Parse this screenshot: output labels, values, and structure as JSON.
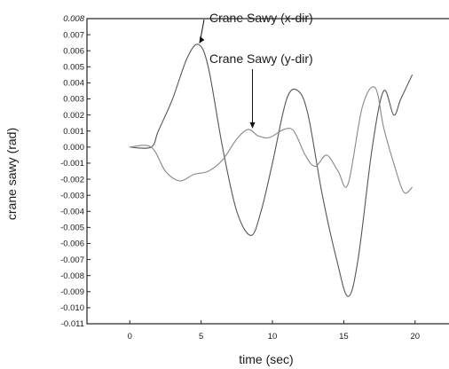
{
  "chart_data": {
    "type": "line",
    "title": "",
    "xlabel": "time (sec)",
    "ylabel": "crane sawy (rad)",
    "xlim": [
      -3,
      22.5
    ],
    "ylim": [
      -0.011,
      0.008
    ],
    "x_ticks": [
      0,
      5,
      10,
      15,
      20
    ],
    "x_tick_labels": [
      "0",
      "5",
      "10",
      "15",
      "20"
    ],
    "y_ticks": [
      0.008,
      0.007,
      0.006,
      0.005,
      0.004,
      0.003,
      0.002,
      0.001,
      0.0,
      -0.001,
      -0.002,
      -0.003,
      -0.004,
      -0.005,
      -0.006,
      -0.007,
      -0.008,
      -0.009,
      -0.01,
      -0.011
    ],
    "y_tick_labels": [
      "0.008",
      "0.007",
      "0.006",
      "0.005",
      "0.004",
      "0.003",
      "0.002",
      "0.001",
      "0.000",
      "-0.001",
      "-0.002",
      "-0.003",
      "-0.004",
      "-0.005",
      "-0.006",
      "-0.007",
      "-0.008",
      "-0.009",
      "-0.010",
      "-0.011"
    ],
    "grid": false,
    "legend": "none",
    "series": [
      {
        "x": [
          0,
          1.5,
          2,
          3,
          4,
          4.8,
          5.5,
          6.5,
          7.5,
          8.5,
          9.2,
          10,
          11,
          11.8,
          12.5,
          13.5,
          14.5,
          15.3,
          16,
          17,
          17.8,
          18.5,
          19,
          19.8
        ],
        "y": [
          0.0,
          0.0,
          0.001,
          0.003,
          0.0055,
          0.0064,
          0.005,
          0.0,
          -0.004,
          -0.0055,
          -0.004,
          -0.001,
          0.003,
          0.0035,
          0.002,
          -0.003,
          -0.007,
          -0.0093,
          -0.007,
          0.0,
          0.0035,
          0.002,
          0.003,
          0.0045
        ],
        "color": "#555555"
      },
      {
        "x": [
          0,
          1.5,
          2.5,
          3.5,
          4.5,
          5.5,
          6.5,
          7.5,
          8.3,
          9,
          9.8,
          10.8,
          11.5,
          12.3,
          13,
          13.8,
          14.6,
          15.3,
          16.3,
          17.2,
          17.8,
          18.5,
          19.2,
          19.8
        ],
        "y": [
          0.0,
          0.0,
          -0.0015,
          -0.0021,
          -0.0017,
          -0.0015,
          -0.0008,
          0.0005,
          0.0011,
          0.0007,
          0.0006,
          0.0011,
          0.001,
          -0.0005,
          -0.0012,
          -0.0005,
          -0.0015,
          -0.0023,
          0.0025,
          0.0037,
          0.0012,
          -0.001,
          -0.0028,
          -0.0025
        ],
        "color": "#888888"
      }
    ],
    "annotations": [
      {
        "text": "Crane Sawy (x-dir)",
        "x": 4.8,
        "y": 0.0064
      },
      {
        "text": "Crane Sawy (y-dir)",
        "x": 8.6,
        "y": 0.0011
      }
    ]
  }
}
